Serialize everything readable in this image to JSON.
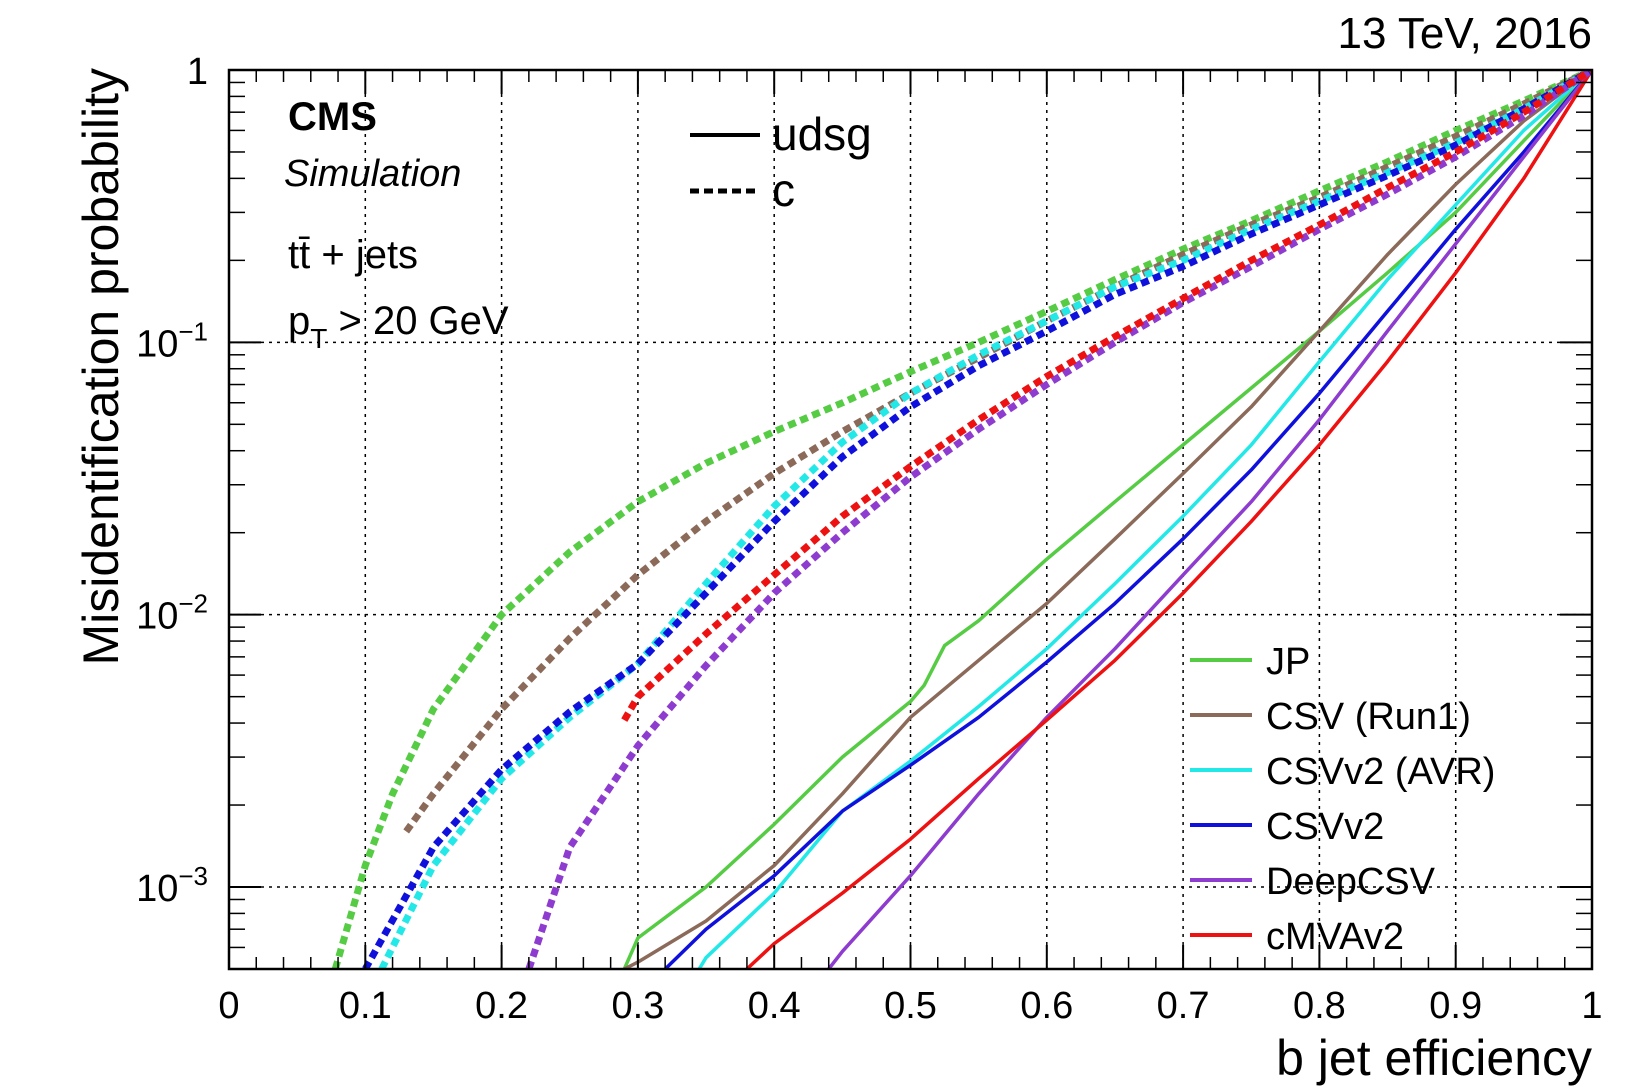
{
  "chart_data": {
    "type": "line",
    "top_right_label": "13 TeV, 2016",
    "experiment": "CMS",
    "status": "Simulation",
    "process": "tt̄ + jets",
    "cut": "p_T > 20 GeV",
    "xlabel": "b jet efficiency",
    "ylabel": "Misidentification probability",
    "x_scale": "linear",
    "y_scale": "log",
    "xlim": [
      0,
      1
    ],
    "ylim": [
      0.0005,
      1
    ],
    "grid": true,
    "x_ticks": [
      "0",
      "0.1",
      "0.2",
      "0.3",
      "0.4",
      "0.5",
      "0.6",
      "0.7",
      "0.8",
      "0.9",
      "1"
    ],
    "x_tick_values": [
      0,
      0.1,
      0.2,
      0.3,
      0.4,
      0.5,
      0.6,
      0.7,
      0.8,
      0.9,
      1
    ],
    "y_ticks": [
      {
        "value": 1,
        "base": "1",
        "exp": ""
      },
      {
        "value": 0.1,
        "base": "10",
        "exp": "−1"
      },
      {
        "value": 0.01,
        "base": "10",
        "exp": "−2"
      },
      {
        "value": 0.001,
        "base": "10",
        "exp": "−3"
      }
    ],
    "style_legend": [
      {
        "label": "udsg",
        "style": "solid"
      },
      {
        "label": "c",
        "style": "dashed"
      }
    ],
    "legend_position": "bottom-right",
    "legend": [
      {
        "name": "JP",
        "color": "#55cc44"
      },
      {
        "name": "CSV (Run1)",
        "color": "#8b6a5a"
      },
      {
        "name": "CSVv2 (AVR)",
        "color": "#22e8e8"
      },
      {
        "name": "CSVv2",
        "color": "#1010dd"
      },
      {
        "name": "DeepCSV",
        "color": "#8e3bd0"
      },
      {
        "name": "cMVAv2",
        "color": "#ee1111"
      }
    ],
    "series": [
      {
        "tagger": "JP",
        "flavour": "udsg",
        "color": "#55cc44",
        "style": "solid",
        "x": [
          0.29,
          0.3,
          0.35,
          0.4,
          0.45,
          0.5,
          0.51,
          0.525,
          0.55,
          0.6,
          0.65,
          0.7,
          0.75,
          0.8,
          0.85,
          0.9,
          0.95,
          1.0
        ],
        "y": [
          0.0005,
          0.00065,
          0.001,
          0.0017,
          0.003,
          0.0048,
          0.0055,
          0.0077,
          0.0095,
          0.016,
          0.026,
          0.042,
          0.068,
          0.11,
          0.18,
          0.3,
          0.55,
          1.0
        ]
      },
      {
        "tagger": "CSV (Run1)",
        "flavour": "udsg",
        "color": "#8b6a5a",
        "style": "solid",
        "x": [
          0.29,
          0.3,
          0.35,
          0.4,
          0.45,
          0.5,
          0.55,
          0.6,
          0.65,
          0.7,
          0.75,
          0.8,
          0.85,
          0.9,
          0.95,
          1.0
        ],
        "y": [
          0.0005,
          0.00053,
          0.00075,
          0.0012,
          0.0022,
          0.0042,
          0.0068,
          0.011,
          0.019,
          0.033,
          0.058,
          0.11,
          0.21,
          0.38,
          0.65,
          1.0
        ]
      },
      {
        "tagger": "CSVv2 (AVR)",
        "flavour": "udsg",
        "color": "#22e8e8",
        "style": "solid",
        "x": [
          0.345,
          0.35,
          0.4,
          0.45,
          0.5,
          0.55,
          0.6,
          0.65,
          0.7,
          0.75,
          0.8,
          0.85,
          0.9,
          0.95,
          1.0
        ],
        "y": [
          0.0005,
          0.00055,
          0.00095,
          0.0019,
          0.0029,
          0.0046,
          0.0075,
          0.013,
          0.023,
          0.042,
          0.085,
          0.17,
          0.32,
          0.6,
          1.0
        ]
      },
      {
        "tagger": "CSVv2",
        "flavour": "udsg",
        "color": "#1010dd",
        "style": "solid",
        "x": [
          0.32,
          0.35,
          0.4,
          0.45,
          0.5,
          0.55,
          0.6,
          0.65,
          0.7,
          0.75,
          0.8,
          0.85,
          0.9,
          0.95,
          1.0
        ],
        "y": [
          0.0005,
          0.0007,
          0.0011,
          0.0019,
          0.0028,
          0.0042,
          0.0067,
          0.011,
          0.019,
          0.034,
          0.065,
          0.13,
          0.26,
          0.5,
          1.0
        ]
      },
      {
        "tagger": "DeepCSV",
        "flavour": "udsg",
        "color": "#8e3bd0",
        "style": "solid",
        "x": [
          0.44,
          0.45,
          0.5,
          0.55,
          0.6,
          0.65,
          0.7,
          0.75,
          0.8,
          0.85,
          0.9,
          0.95,
          1.0
        ],
        "y": [
          0.0005,
          0.00058,
          0.0011,
          0.0022,
          0.0042,
          0.0075,
          0.014,
          0.026,
          0.052,
          0.11,
          0.23,
          0.48,
          1.0
        ]
      },
      {
        "tagger": "cMVAv2",
        "flavour": "udsg",
        "color": "#ee1111",
        "style": "solid",
        "x": [
          0.38,
          0.4,
          0.45,
          0.5,
          0.55,
          0.6,
          0.65,
          0.7,
          0.75,
          0.8,
          0.85,
          0.9,
          0.95,
          1.0
        ],
        "y": [
          0.0005,
          0.00062,
          0.00095,
          0.0015,
          0.0025,
          0.0041,
          0.0068,
          0.012,
          0.022,
          0.042,
          0.085,
          0.18,
          0.4,
          1.0
        ]
      },
      {
        "tagger": "JP",
        "flavour": "c",
        "color": "#55cc44",
        "style": "dashed",
        "x": [
          0.078,
          0.1,
          0.12,
          0.15,
          0.2,
          0.25,
          0.3,
          0.35,
          0.4,
          0.45,
          0.5,
          0.55,
          0.6,
          0.65,
          0.7,
          0.75,
          0.8,
          0.85,
          0.9,
          0.95,
          1.0
        ],
        "y": [
          0.0005,
          0.0012,
          0.0022,
          0.0045,
          0.01,
          0.017,
          0.026,
          0.036,
          0.047,
          0.06,
          0.078,
          0.1,
          0.13,
          0.17,
          0.22,
          0.28,
          0.36,
          0.46,
          0.6,
          0.77,
          1.0
        ]
      },
      {
        "tagger": "CSV (Run1)",
        "flavour": "c",
        "color": "#8b6a5a",
        "style": "dashed",
        "x": [
          0.13,
          0.15,
          0.2,
          0.25,
          0.3,
          0.35,
          0.4,
          0.45,
          0.5,
          0.55,
          0.6,
          0.65,
          0.7,
          0.75,
          0.8,
          0.85,
          0.9,
          0.95,
          1.0
        ],
        "y": [
          0.0016,
          0.0022,
          0.0045,
          0.0082,
          0.014,
          0.022,
          0.033,
          0.047,
          0.065,
          0.088,
          0.12,
          0.16,
          0.21,
          0.27,
          0.34,
          0.44,
          0.57,
          0.75,
          1.0
        ]
      },
      {
        "tagger": "CSVv2 (AVR)",
        "flavour": "c",
        "color": "#22e8e8",
        "style": "dashed",
        "x": [
          0.112,
          0.15,
          0.2,
          0.25,
          0.3,
          0.35,
          0.4,
          0.45,
          0.5,
          0.55,
          0.6,
          0.65,
          0.7,
          0.75,
          0.8,
          0.85,
          0.9,
          0.95,
          1.0
        ],
        "y": [
          0.0005,
          0.0012,
          0.0025,
          0.0042,
          0.0066,
          0.013,
          0.025,
          0.043,
          0.065,
          0.09,
          0.12,
          0.16,
          0.2,
          0.26,
          0.33,
          0.42,
          0.54,
          0.72,
          1.0
        ]
      },
      {
        "tagger": "CSVv2",
        "flavour": "c",
        "color": "#1010dd",
        "style": "dashed",
        "x": [
          0.1,
          0.15,
          0.2,
          0.25,
          0.3,
          0.35,
          0.4,
          0.45,
          0.5,
          0.55,
          0.6,
          0.65,
          0.7,
          0.75,
          0.8,
          0.85,
          0.9,
          0.95,
          1.0
        ],
        "y": [
          0.0005,
          0.0014,
          0.0027,
          0.0044,
          0.0066,
          0.012,
          0.022,
          0.038,
          0.058,
          0.082,
          0.11,
          0.15,
          0.19,
          0.25,
          0.32,
          0.41,
          0.53,
          0.72,
          1.0
        ]
      },
      {
        "tagger": "DeepCSV",
        "flavour": "c",
        "color": "#8e3bd0",
        "style": "dashed",
        "x": [
          0.22,
          0.25,
          0.3,
          0.35,
          0.4,
          0.45,
          0.5,
          0.55,
          0.6,
          0.65,
          0.7,
          0.75,
          0.8,
          0.85,
          0.9,
          0.95,
          1.0
        ],
        "y": [
          0.0005,
          0.0014,
          0.0033,
          0.0065,
          0.012,
          0.02,
          0.032,
          0.048,
          0.07,
          0.1,
          0.14,
          0.19,
          0.26,
          0.35,
          0.48,
          0.68,
          1.0
        ]
      },
      {
        "tagger": "cMVAv2",
        "flavour": "c",
        "color": "#ee1111",
        "style": "dashed",
        "x": [
          0.29,
          0.3,
          0.35,
          0.4,
          0.45,
          0.5,
          0.55,
          0.6,
          0.65,
          0.7,
          0.75,
          0.8,
          0.85,
          0.9,
          0.95,
          1.0
        ],
        "y": [
          0.0041,
          0.005,
          0.0085,
          0.014,
          0.023,
          0.035,
          0.052,
          0.075,
          0.105,
          0.145,
          0.2,
          0.27,
          0.37,
          0.5,
          0.7,
          1.0
        ]
      }
    ]
  }
}
